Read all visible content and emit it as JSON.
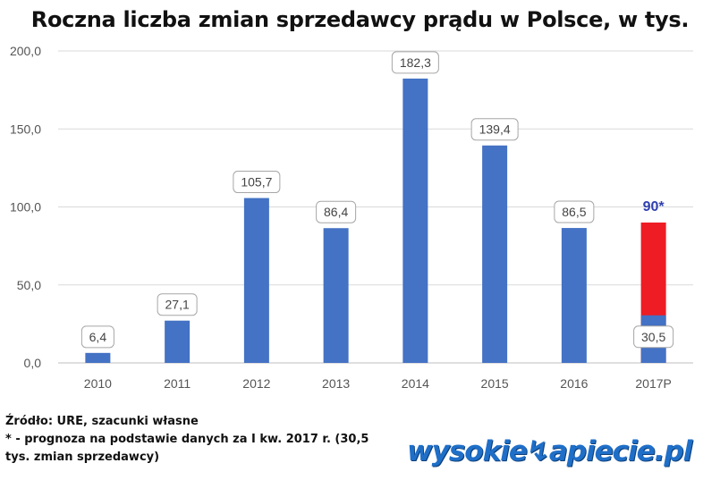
{
  "chart_data": {
    "type": "bar",
    "title": "Roczna liczba zmian sprzedawcy prądu w Polsce, w tys.",
    "categories": [
      "2010",
      "2011",
      "2012",
      "2013",
      "2014",
      "2015",
      "2016",
      "2017P"
    ],
    "values": [
      6.4,
      27.1,
      105.7,
      86.4,
      182.3,
      139.4,
      86.5,
      30.5
    ],
    "value_labels": [
      "6,4",
      "27,1",
      "105,7",
      "86,4",
      "182,3",
      "139,4",
      "86,5",
      "30,5"
    ],
    "forecast": {
      "category": "2017P",
      "value": 90,
      "label": "90*",
      "color": "#ee1c25"
    },
    "yticks": [
      "0,0",
      "50,0",
      "100,0",
      "150,0",
      "200,0"
    ],
    "ylim": [
      0,
      200
    ],
    "grid": true,
    "bar_color": "#4472c4"
  },
  "footnotes": {
    "source": "Źródło: URE, szacunki własne",
    "note_line1": "* - prognoza na podstawie danych za I kw. 2017 r. (30,5",
    "note_line2": "tys. zmian sprzedawcy)"
  },
  "brand": {
    "part1": "wysokie",
    "part2": "apiecie.pl"
  }
}
